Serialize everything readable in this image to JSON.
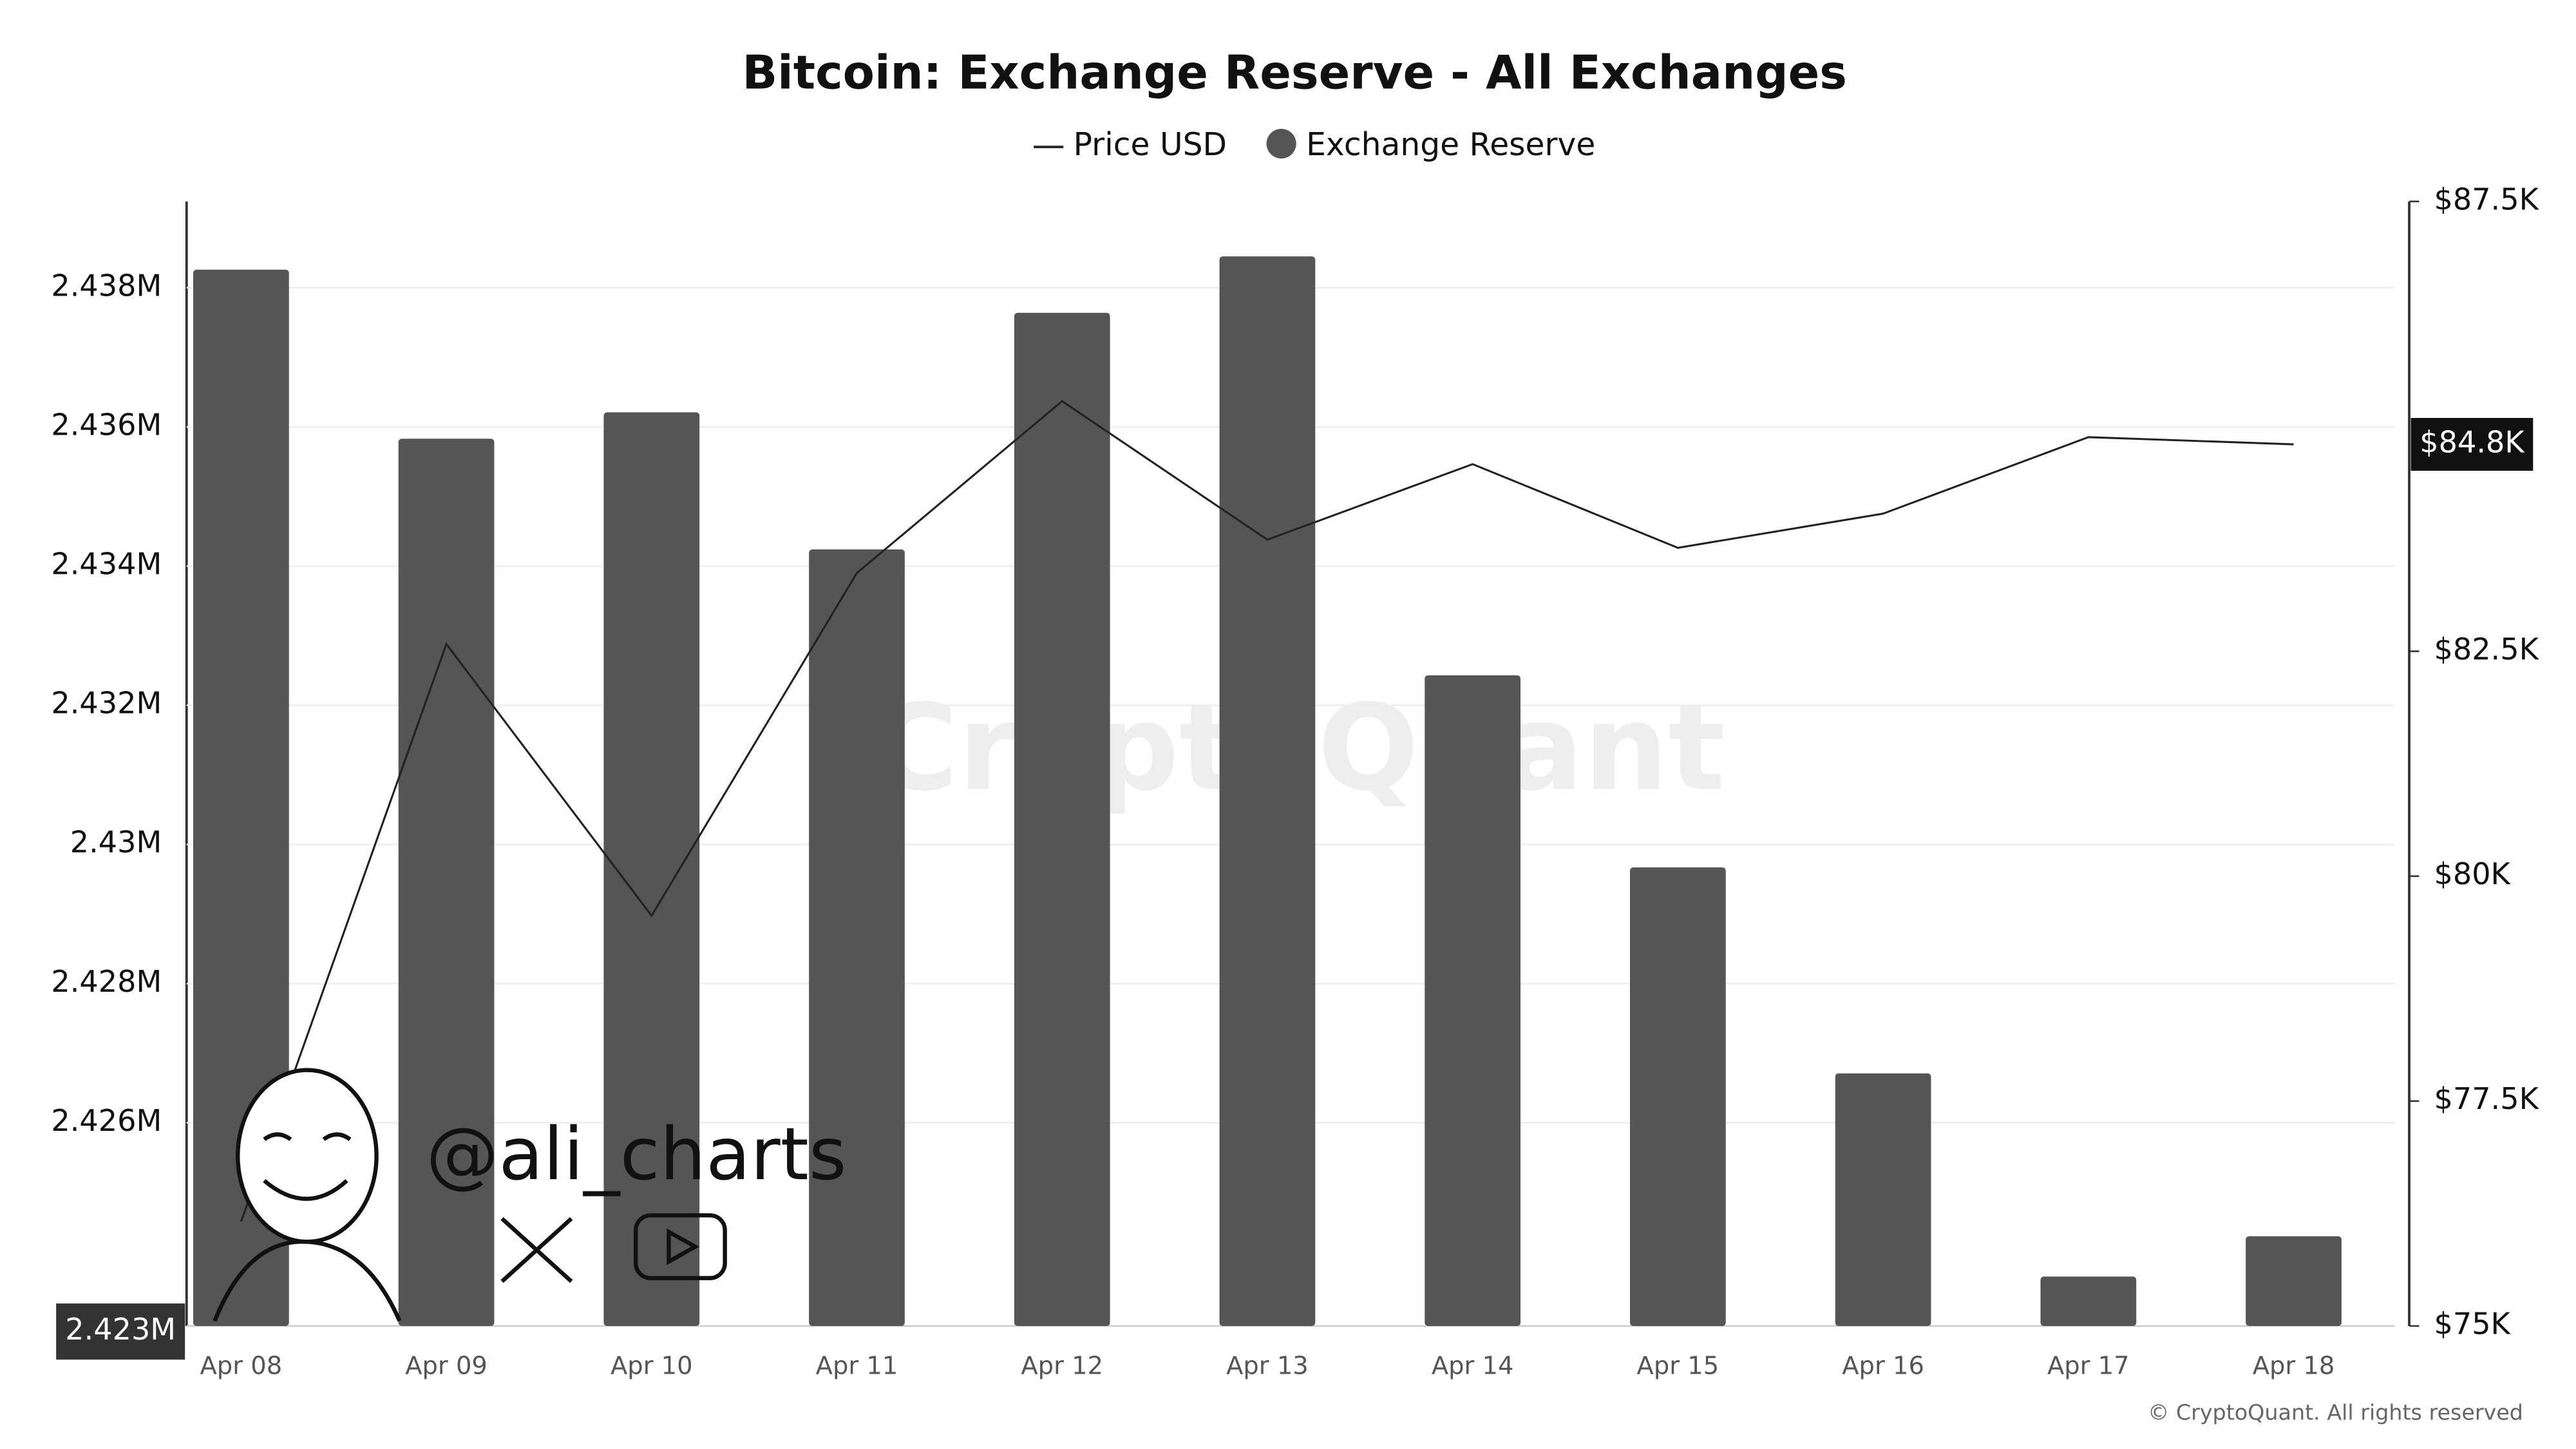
{
  "chart_data": {
    "type": "bar",
    "title": "Bitcoin: Exchange Reserve - All Exchanges",
    "categories": [
      "Apr 08",
      "Apr 09",
      "Apr 10",
      "Apr 11",
      "Apr 12",
      "Apr 13",
      "Apr 14",
      "Apr 15",
      "Apr 16",
      "Apr 17",
      "Apr 18"
    ],
    "series": [
      {
        "name": "Price USD",
        "type": "line",
        "axis": "y2",
        "color": "#222222",
        "values": [
          76160,
          82580,
          79560,
          83370,
          85280,
          83740,
          84580,
          83650,
          84030,
          84880,
          84800
        ],
        "last_label": "$84.8K"
      },
      {
        "name": "Exchange Reserve",
        "type": "bar",
        "axis": "y",
        "color": "#555555",
        "values": [
          2438260,
          2435830,
          2436210,
          2434240,
          2437640,
          2438450,
          2432430,
          2429670,
          2426710,
          2423790,
          2424370
        ]
      }
    ],
    "ylim": [
      2423080,
      2439240
    ],
    "yticks": [
      {
        "value": 2426000,
        "label": "2.426M"
      },
      {
        "value": 2428000,
        "label": "2.428M"
      },
      {
        "value": 2430000,
        "label": "2.43M"
      },
      {
        "value": 2432000,
        "label": "2.432M"
      },
      {
        "value": 2434000,
        "label": "2.434M"
      },
      {
        "value": 2436000,
        "label": "2.436M"
      },
      {
        "value": 2438000,
        "label": "2.438M"
      }
    ],
    "ycursor": {
      "value": 2423000,
      "label": "2.423M"
    },
    "y2lim": [
      75000,
      87500
    ],
    "y2ticks": [
      {
        "value": 75000,
        "label": "$75K"
      },
      {
        "value": 77500,
        "label": "$77.5K"
      },
      {
        "value": 80000,
        "label": "$80K"
      },
      {
        "value": 82500,
        "label": "$82.5K"
      },
      {
        "value": 87500,
        "label": "$87.5K"
      }
    ],
    "grid": true,
    "legend": "top",
    "watermark": "CryptoQuant",
    "handle": "@ali_charts",
    "credit": "© CryptoQuant. All rights reserved"
  }
}
